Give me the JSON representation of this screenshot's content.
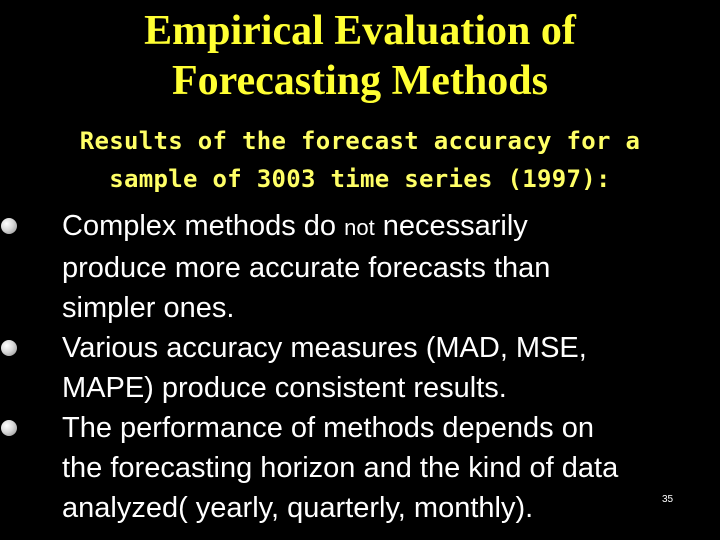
{
  "slide": {
    "title_lines": [
      "Empirical Evaluation of",
      "Forecasting Methods"
    ],
    "subtitle_lines": [
      "Results of the forecast accuracy for a",
      "sample of 3003 time series (1997):"
    ],
    "bullets": [
      {
        "lines": [
          {
            "pre": "Complex methods do ",
            "small": "not",
            "post": " necessarily"
          },
          {
            "pre": "produce more accurate forecasts than",
            "small": "",
            "post": ""
          },
          {
            "pre": "simpler ones.",
            "small": "",
            "post": ""
          }
        ]
      },
      {
        "lines": [
          {
            "pre": "Various accuracy measures (MAD, MSE,",
            "small": "",
            "post": ""
          },
          {
            "pre": "MAPE) produce consistent results.",
            "small": "",
            "post": ""
          }
        ]
      },
      {
        "lines": [
          {
            "pre": "The performance of methods depends on",
            "small": "",
            "post": ""
          },
          {
            "pre": "the forecasting horizon and the kind of data",
            "small": "",
            "post": ""
          },
          {
            "pre": "analyzed( yearly, quarterly, monthly).",
            "small": "",
            "post": ""
          }
        ]
      }
    ],
    "slide_number": "35"
  },
  "colors": {
    "background": "#000000",
    "title": "#ffff33",
    "subtitle": "#ffff66",
    "body_text": "#ffffff"
  },
  "icons": {
    "bullet": "round-bullet-icon"
  }
}
